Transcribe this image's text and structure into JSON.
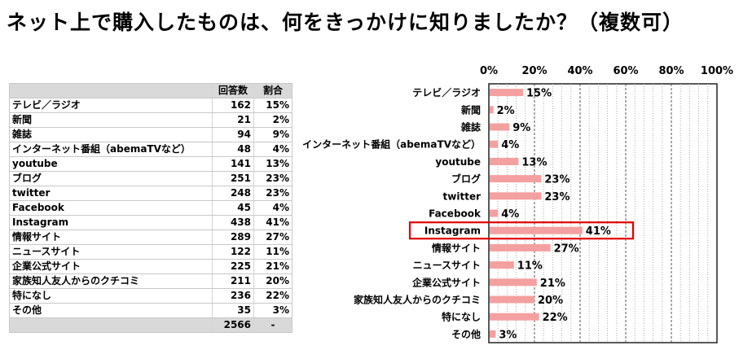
{
  "page": {
    "title": "ネット上で購入したものは、何をきっかけに知りましたか？（複数可）"
  },
  "table": {
    "headers": [
      "",
      "回答数",
      "割合"
    ],
    "rows": [
      {
        "label": "テレビ／ラジオ",
        "count": "162",
        "pct": "15%"
      },
      {
        "label": "新聞",
        "count": "21",
        "pct": "2%"
      },
      {
        "label": "雑誌",
        "count": "94",
        "pct": "9%"
      },
      {
        "label": "インターネット番組（abemaTVなど）",
        "count": "48",
        "pct": "4%"
      },
      {
        "label": "youtube",
        "count": "141",
        "pct": "13%"
      },
      {
        "label": "ブログ",
        "count": "251",
        "pct": "23%"
      },
      {
        "label": "twitter",
        "count": "248",
        "pct": "23%"
      },
      {
        "label": "Facebook",
        "count": "45",
        "pct": "4%"
      },
      {
        "label": "Instagram",
        "count": "438",
        "pct": "41%"
      },
      {
        "label": "情報サイト",
        "count": "289",
        "pct": "27%"
      },
      {
        "label": "ニュースサイト",
        "count": "122",
        "pct": "11%"
      },
      {
        "label": "企業公式サイト",
        "count": "225",
        "pct": "21%"
      },
      {
        "label": "家族知人友人からのクチコミ",
        "count": "211",
        "pct": "20%"
      },
      {
        "label": "特になし",
        "count": "236",
        "pct": "22%"
      },
      {
        "label": "その他",
        "count": "35",
        "pct": "3%"
      }
    ],
    "total": {
      "label": "",
      "count": "2566",
      "pct": "-"
    }
  },
  "chart_data": {
    "type": "bar",
    "orientation": "horizontal",
    "categories": [
      "テレビ／ラジオ",
      "新聞",
      "雑誌",
      "インターネット番組（abemaTVなど）",
      "youtube",
      "ブログ",
      "twitter",
      "Facebook",
      "Instagram",
      "情報サイト",
      "ニュースサイト",
      "企業公式サイト",
      "家族知人友人からのクチコミ",
      "特になし",
      "その他"
    ],
    "values": [
      15,
      2,
      9,
      4,
      13,
      23,
      23,
      4,
      41,
      27,
      11,
      21,
      20,
      22,
      3
    ],
    "value_labels": [
      "15%",
      "2%",
      "9%",
      "4%",
      "13%",
      "23%",
      "23%",
      "4%",
      "41%",
      "27%",
      "11%",
      "21%",
      "20%",
      "22%",
      "3%"
    ],
    "x_ticks": [
      "0%",
      "20%",
      "40%",
      "60%",
      "80%",
      "100%"
    ],
    "xlim": [
      0,
      100
    ],
    "axis_position": "top",
    "grid": true,
    "bar_color": "#f4a0a0",
    "highlight_color": "#e00000",
    "highlight_category": "Instagram"
  }
}
